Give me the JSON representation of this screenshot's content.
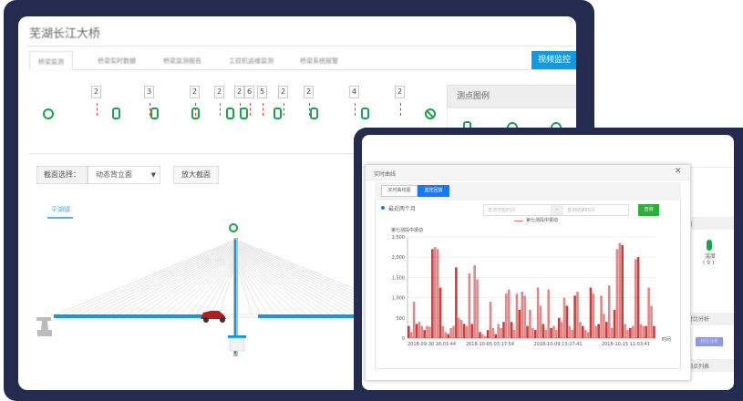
{
  "back_window": {
    "title": "芜湖长江大桥",
    "tabs": [
      {
        "label": "桥梁监测",
        "active": true
      },
      {
        "label": "桥梁实时数据"
      },
      {
        "label": "桥梁监测报告"
      },
      {
        "label": "工控机运维监测"
      },
      {
        "label": "桥梁系统报警"
      }
    ],
    "video_button": "视频监控",
    "sensor_counts": [
      "2",
      "3",
      "2",
      "2",
      "2",
      "6",
      "5",
      "2",
      "2",
      "4",
      "2"
    ],
    "legend_header": "测点图例",
    "section_label": "截面选择：",
    "section_value": "动态背立面",
    "zoom_button": "放大截面",
    "direction_label": "平湖镇"
  },
  "front_window": {
    "side_items": {
      "legend_header_fragment": "例",
      "temp_label": "温度",
      "temp_count": "( 9 )",
      "compare_header": "对比分析",
      "compare_button": "对比分析",
      "list_header": "测点列表"
    },
    "modal": {
      "title": "实时曲线",
      "tabs": [
        {
          "label": "实时曲线图"
        },
        {
          "label": "监控回放",
          "active": true
        }
      ],
      "radio_label": "最近两个月",
      "start_placeholder": "查询开始时间",
      "separator": "-",
      "end_placeholder": "查询结束时间",
      "query_button": "查询"
    }
  },
  "colors": {
    "frame": "#232c4f",
    "accent": "#0f9be3",
    "sensor": "#1aa34a",
    "series": "#c62828",
    "query": "#2fae3c"
  },
  "chart_data": {
    "type": "bar",
    "legend": "第七测段中振动",
    "ylabel": "第七测段中振动",
    "xlabel": "时间",
    "ylim": [
      0,
      2500
    ],
    "yticks": [
      "0",
      "500",
      "1,000",
      "1,500",
      "2,000",
      "2,500"
    ],
    "xticks": [
      "2018-09-30 16:01:44",
      "2018-10-05 03:17:54",
      "2018-10-09 13:27:41",
      "2018-10-15 11:03:41"
    ],
    "grid": true,
    "legend_position": "top",
    "values": [
      300,
      150,
      900,
      350,
      400,
      300,
      200,
      300,
      280,
      2200,
      2250,
      2200,
      1250,
      300,
      150,
      100,
      250,
      300,
      1750,
      500,
      450,
      350,
      300,
      1600,
      350,
      1800,
      1450,
      150,
      100,
      50,
      200,
      900,
      250,
      100,
      350,
      250,
      400,
      1100,
      1200,
      400,
      200,
      1100,
      700,
      1150,
      1050,
      300,
      700,
      250,
      200,
      1250,
      800,
      350,
      200,
      1200,
      250,
      300,
      200,
      500,
      400,
      1000,
      800,
      300,
      200,
      1050,
      1150,
      400,
      300,
      200,
      150,
      1250,
      1100,
      300,
      350,
      1050,
      600,
      400,
      1300,
      250,
      700,
      2200,
      2350,
      2300,
      350,
      200,
      250,
      300,
      1950,
      2000,
      350,
      300,
      300,
      1250,
      800,
      300
    ]
  }
}
